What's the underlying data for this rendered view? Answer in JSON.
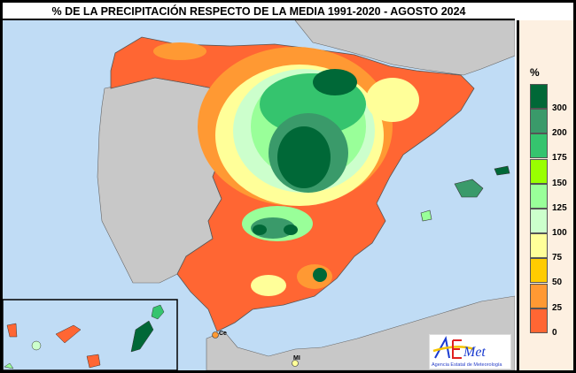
{
  "title": "% DE LA PRECIPITACIÓN RESPECTO DE LA MEDIA 1991-2020 - AGOSTO 2024",
  "legend": {
    "unit": "%",
    "classes": [
      {
        "label": "300",
        "color": "#006837"
      },
      {
        "label": "200",
        "color": "#3a9a6a"
      },
      {
        "label": "175",
        "color": "#35c46e"
      },
      {
        "label": "150",
        "color": "#99ff00"
      },
      {
        "label": "125",
        "color": "#99ff99"
      },
      {
        "label": "100",
        "color": "#ccffcc"
      },
      {
        "label": "75",
        "color": "#ffff99"
      },
      {
        "label": "50",
        "color": "#ffcc00"
      },
      {
        "label": "25",
        "color": "#ff9933"
      },
      {
        "label": "0",
        "color": "#ff6633"
      }
    ]
  },
  "places": {
    "ceuta": "Ce",
    "melilla": "MI"
  },
  "logo": {
    "name": "AEMet",
    "subtitle": "Agencia Estatal de Meteorología"
  },
  "colors": {
    "sea": "#c0dcf5",
    "land_other": "#c8c8c8"
  }
}
